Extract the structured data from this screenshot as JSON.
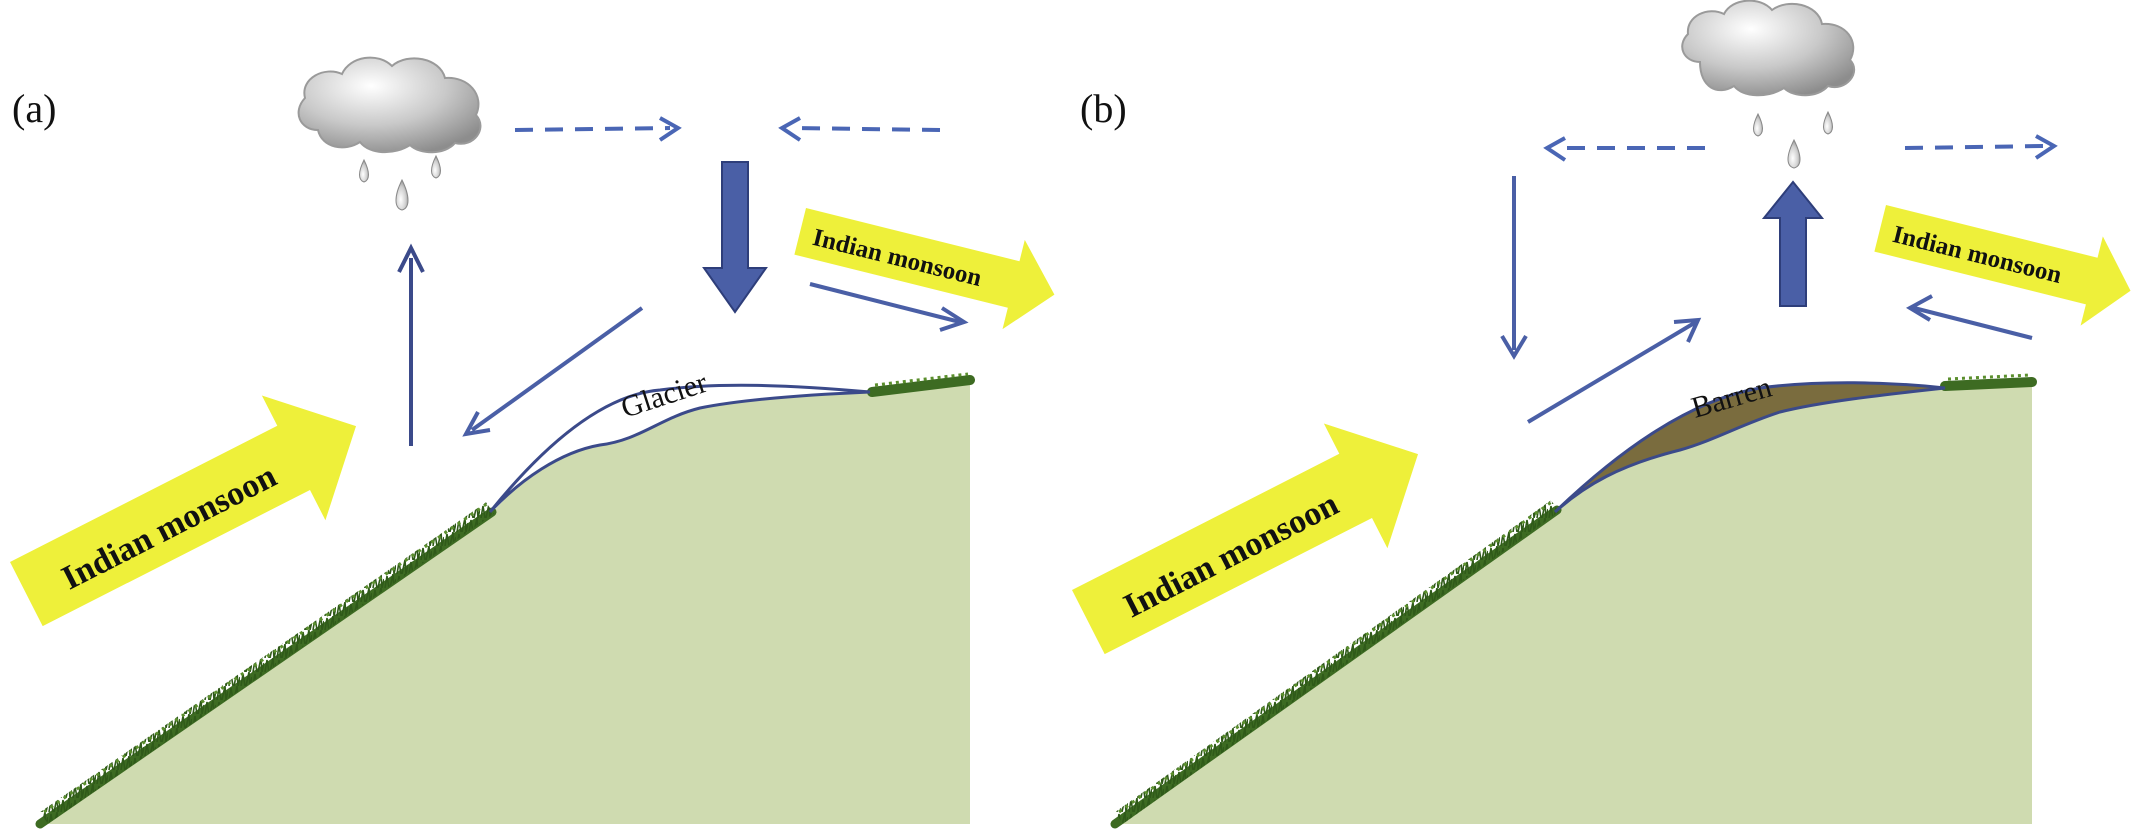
{
  "panel_a": {
    "label": "(a)",
    "monsoon_main": "Indian monsoon",
    "monsoon_lee": "Indian monsoon",
    "surface_label": "Glacier"
  },
  "panel_b": {
    "label": "(b)",
    "monsoon_main": "Indian monsoon",
    "monsoon_lee": "Indian monsoon",
    "surface_label": "Barren"
  },
  "colors": {
    "hill_fill": "#cfdbb0",
    "arrow_blue": "#4a5fa6",
    "monsoon_yellow": "#eef03a",
    "barren_brown": "#7a6c3e",
    "glacier_white": "#ffffff",
    "grass_green": "#3d6b22"
  },
  "icons": [
    "rain-cloud-icon",
    "grass-strip-icon"
  ]
}
